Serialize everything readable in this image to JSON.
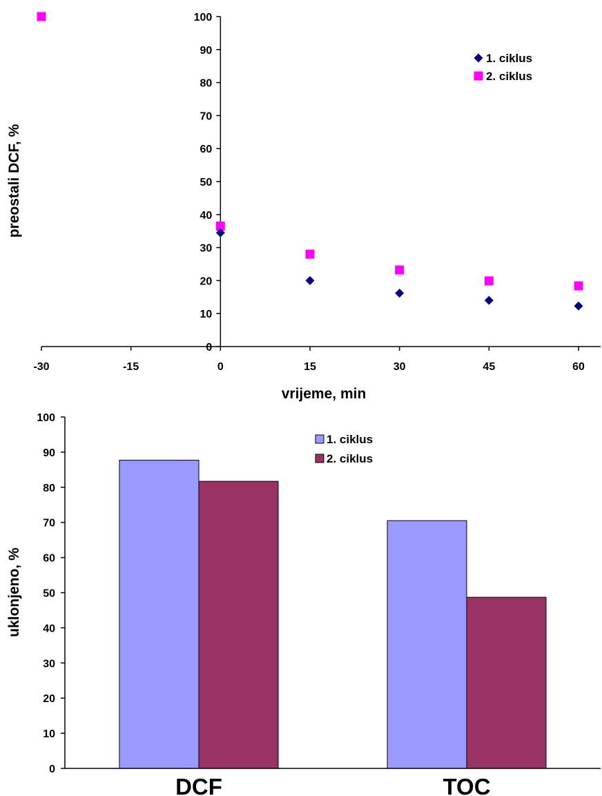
{
  "chart_data": [
    {
      "type": "scatter",
      "xlabel": "vrijeme, min",
      "ylabel": "preostali DCF, %",
      "xlim": [
        -30,
        60
      ],
      "ylim": [
        0,
        100
      ],
      "xticks": [
        -30,
        -15,
        0,
        15,
        30,
        45,
        60
      ],
      "yticks": [
        0,
        10,
        20,
        30,
        40,
        50,
        60,
        70,
        80,
        90,
        100
      ],
      "legend_position": "top-right",
      "series": [
        {
          "name": "1.  ciklus",
          "marker": "diamond",
          "color": "#000080",
          "x": [
            0,
            15,
            30,
            45,
            60
          ],
          "y": [
            34.5,
            20,
            16.2,
            14,
            12.3
          ]
        },
        {
          "name": "2. ciklus",
          "marker": "square",
          "color": "#FF00FF",
          "x": [
            -30,
            0,
            15,
            30,
            45,
            60
          ],
          "y": [
            100,
            36.5,
            28,
            23.2,
            19.9,
            18.4
          ]
        }
      ]
    },
    {
      "type": "bar",
      "categories": [
        "DCF",
        "TOC"
      ],
      "ylabel": "uklonjeno, %",
      "ylim": [
        0,
        100
      ],
      "yticks": [
        0,
        10,
        20,
        30,
        40,
        50,
        60,
        70,
        80,
        90,
        100
      ],
      "legend_position": "top-center",
      "series": [
        {
          "name": "1. ciklus",
          "color": "#9999FF",
          "values": [
            87.7,
            70.5
          ]
        },
        {
          "name": "2. ciklus",
          "color": "#993366",
          "values": [
            81.7,
            48.7
          ]
        }
      ]
    }
  ]
}
